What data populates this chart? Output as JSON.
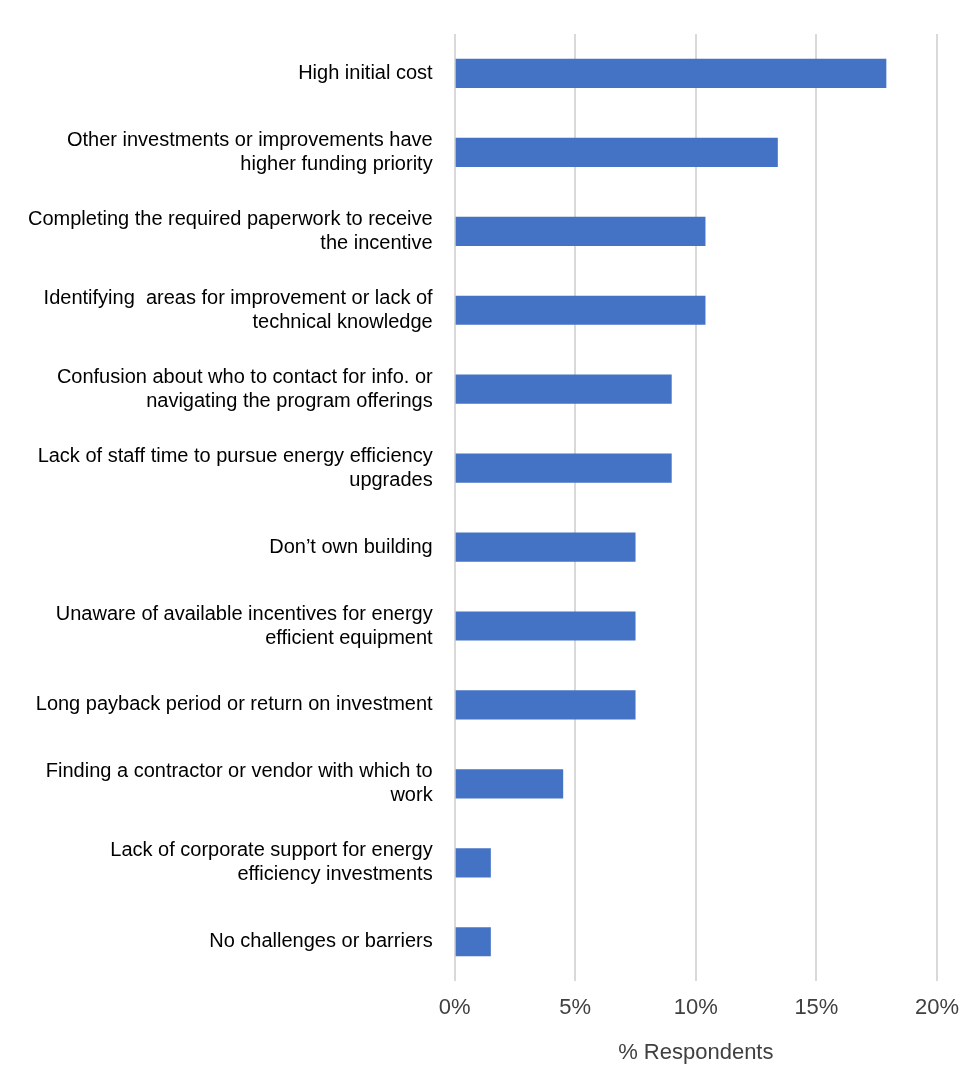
{
  "chart_data": {
    "type": "bar",
    "orientation": "horizontal",
    "xlabel": "% Respondents",
    "categories": [
      "High initial cost",
      "Other investments or improvements have higher funding priority",
      "Completing the required paperwork to receive the incentive",
      "Identifying  areas for improvement or lack of technical knowledge",
      "Confusion about who to contact for info. or navigating the program offerings",
      "Lack of staff time to pursue energy efficiency upgrades",
      "Don’t own building",
      "Unaware of available incentives for energy efficient equipment",
      "Long payback period or return on investment",
      "Finding a contractor or vendor with which to work",
      "Lack of corporate support for energy efficiency investments",
      "No challenges or barriers"
    ],
    "values": [
      17.9,
      13.4,
      10.4,
      10.4,
      9.0,
      9.0,
      7.5,
      7.5,
      7.5,
      4.5,
      1.5,
      1.5
    ],
    "color": "#4472c4",
    "xlim": [
      0,
      20
    ],
    "xticks": [
      {
        "value": 0,
        "label": "0%"
      },
      {
        "value": 5,
        "label": "5%"
      },
      {
        "value": 10,
        "label": "10%"
      },
      {
        "value": 15,
        "label": "15%"
      },
      {
        "value": 20,
        "label": "20%"
      }
    ],
    "grid": "x",
    "legend": false
  }
}
